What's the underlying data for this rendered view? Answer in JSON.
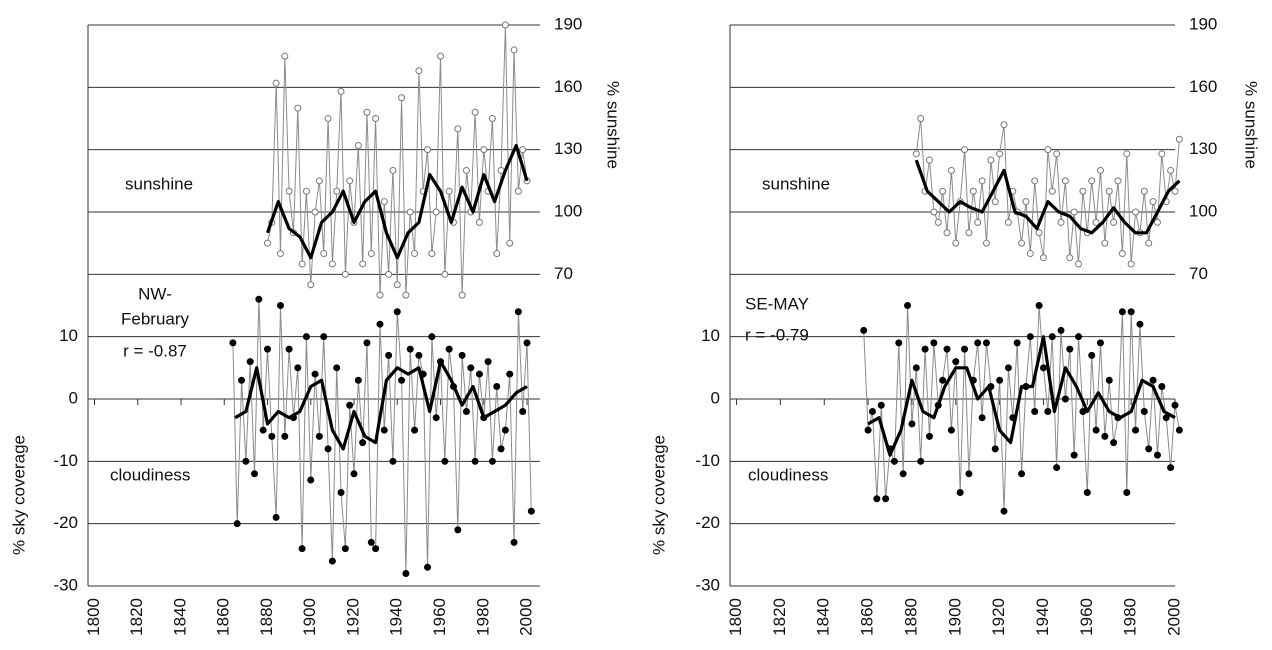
{
  "chart_data": [
    {
      "type": "line",
      "annotations": [
        "NW-",
        "February",
        "r = -0.87"
      ],
      "ylabel": "% sky coverage",
      "y2label": "% sunshine",
      "xlim": [
        1797,
        2006
      ],
      "xticks": [
        1800,
        1820,
        1840,
        1860,
        1880,
        1900,
        1920,
        1940,
        1960,
        1980,
        2000
      ],
      "ylim": [
        -30,
        60
      ],
      "yticks": [
        -30,
        -20,
        -10,
        0,
        10
      ],
      "y2lim": [
        -80,
        190
      ],
      "y2ticks": [
        70,
        100,
        130,
        160,
        190
      ],
      "grid": true,
      "series": [
        {
          "name": "sunshine",
          "axis": "y2",
          "color": "#8c8c8c",
          "marker": "open",
          "x": [
            1880,
            1882,
            1884,
            1886,
            1888,
            1890,
            1892,
            1894,
            1896,
            1898,
            1900,
            1902,
            1904,
            1906,
            1908,
            1910,
            1912,
            1914,
            1916,
            1918,
            1920,
            1922,
            1924,
            1926,
            1928,
            1930,
            1932,
            1934,
            1936,
            1938,
            1940,
            1942,
            1944,
            1946,
            1948,
            1950,
            1952,
            1954,
            1956,
            1958,
            1960,
            1962,
            1964,
            1966,
            1968,
            1970,
            1972,
            1974,
            1976,
            1978,
            1980,
            1982,
            1984,
            1986,
            1988,
            1990,
            1992,
            1994,
            1996,
            1998,
            2000
          ],
          "values": [
            85,
            95,
            162,
            80,
            175,
            110,
            90,
            150,
            75,
            110,
            65,
            100,
            115,
            80,
            145,
            75,
            110,
            158,
            70,
            115,
            95,
            132,
            75,
            148,
            80,
            145,
            60,
            105,
            70,
            120,
            65,
            155,
            60,
            100,
            80,
            168,
            110,
            130,
            80,
            100,
            175,
            70,
            110,
            95,
            140,
            60,
            120,
            100,
            148,
            95,
            130,
            110,
            145,
            80,
            120,
            190,
            85,
            178,
            110,
            130,
            115
          ]
        },
        {
          "axis": "y2",
          "color": "#000000",
          "marker": "none",
          "x": [
            1880,
            1885,
            1890,
            1895,
            1900,
            1905,
            1910,
            1915,
            1920,
            1925,
            1930,
            1935,
            1940,
            1945,
            1950,
            1955,
            1960,
            1965,
            1970,
            1975,
            1980,
            1985,
            1990,
            1995,
            2000
          ],
          "values": [
            90,
            105,
            92,
            88,
            78,
            95,
            100,
            110,
            95,
            105,
            110,
            90,
            78,
            90,
            95,
            118,
            110,
            95,
            112,
            100,
            118,
            105,
            120,
            132,
            115
          ]
        },
        {
          "name": "cloudiness",
          "axis": "y",
          "color": "#8c8c8c",
          "marker": "filled",
          "x": [
            1864,
            1866,
            1868,
            1870,
            1872,
            1874,
            1876,
            1878,
            1880,
            1882,
            1884,
            1886,
            1888,
            1890,
            1892,
            1894,
            1896,
            1898,
            1900,
            1902,
            1904,
            1906,
            1908,
            1910,
            1912,
            1914,
            1916,
            1918,
            1920,
            1922,
            1924,
            1926,
            1928,
            1930,
            1932,
            1934,
            1936,
            1938,
            1940,
            1942,
            1944,
            1946,
            1948,
            1950,
            1952,
            1954,
            1956,
            1958,
            1960,
            1962,
            1964,
            1966,
            1968,
            1970,
            1972,
            1974,
            1976,
            1978,
            1980,
            1982,
            1984,
            1986,
            1988,
            1990,
            1992,
            1994,
            1996,
            1998,
            2000,
            2002
          ],
          "values": [
            9,
            -20,
            3,
            -10,
            6,
            -12,
            16,
            -5,
            8,
            -6,
            -19,
            15,
            -6,
            8,
            -3,
            5,
            -24,
            10,
            -13,
            4,
            -6,
            10,
            -8,
            -26,
            5,
            -15,
            -24,
            -1,
            -12,
            3,
            -7,
            9,
            -23,
            -24,
            12,
            -5,
            7,
            -10,
            14,
            3,
            -28,
            8,
            -5,
            7,
            4,
            -27,
            10,
            -3,
            6,
            -10,
            8,
            2,
            -21,
            7,
            -2,
            5,
            -10,
            4,
            -3,
            6,
            -10,
            2,
            -8,
            -5,
            4,
            -23,
            14,
            -2,
            9,
            -18
          ]
        },
        {
          "axis": "y",
          "color": "#000000",
          "marker": "none",
          "x": [
            1865,
            1870,
            1875,
            1880,
            1885,
            1890,
            1895,
            1900,
            1905,
            1910,
            1915,
            1920,
            1925,
            1930,
            1935,
            1940,
            1945,
            1950,
            1955,
            1960,
            1965,
            1970,
            1975,
            1980,
            1985,
            1990,
            1995,
            2000
          ],
          "values": [
            -3,
            -2,
            5,
            -4,
            -2,
            -3,
            -2,
            2,
            3,
            -5,
            -8,
            -2,
            -6,
            -7,
            3,
            5,
            4,
            5,
            -2,
            6,
            3,
            -1,
            2,
            -3,
            -2,
            -1,
            1,
            2
          ]
        }
      ]
    },
    {
      "type": "line",
      "annotations": [
        "SE-MAY",
        "r = -0.79"
      ],
      "ylabel": "% sky coverage",
      "y2label": "% sunshine",
      "xlim": [
        1797,
        2000
      ],
      "xticks": [
        1800,
        1820,
        1840,
        1860,
        1880,
        1900,
        1920,
        1940,
        1960,
        1980,
        2000
      ],
      "ylim": [
        -30,
        60
      ],
      "yticks": [
        -30,
        -20,
        -10,
        0,
        10
      ],
      "y2lim": [
        -80,
        190
      ],
      "y2ticks": [
        70,
        100,
        130,
        160,
        190
      ],
      "grid": true,
      "series": [
        {
          "name": "sunshine",
          "axis": "y2",
          "color": "#8c8c8c",
          "marker": "open",
          "x": [
            1882,
            1884,
            1886,
            1888,
            1890,
            1892,
            1894,
            1896,
            1898,
            1900,
            1902,
            1904,
            1906,
            1908,
            1910,
            1912,
            1914,
            1916,
            1918,
            1920,
            1922,
            1924,
            1926,
            1928,
            1930,
            1932,
            1934,
            1936,
            1938,
            1940,
            1942,
            1944,
            1946,
            1948,
            1950,
            1952,
            1954,
            1956,
            1958,
            1960,
            1962,
            1964,
            1966,
            1968,
            1970,
            1972,
            1974,
            1976,
            1978,
            1980,
            1982,
            1984,
            1986,
            1988,
            1990,
            1992,
            1994,
            1996,
            1998,
            2000,
            2002
          ],
          "values": [
            128,
            145,
            110,
            125,
            100,
            95,
            110,
            90,
            120,
            85,
            105,
            130,
            90,
            110,
            95,
            115,
            85,
            125,
            105,
            128,
            142,
            95,
            110,
            100,
            85,
            105,
            80,
            115,
            90,
            78,
            130,
            110,
            128,
            95,
            115,
            78,
            100,
            75,
            110,
            90,
            115,
            95,
            120,
            85,
            110,
            95,
            115,
            80,
            128,
            75,
            100,
            90,
            110,
            85,
            105,
            95,
            128,
            105,
            120,
            110,
            135
          ]
        },
        {
          "axis": "y2",
          "color": "#000000",
          "marker": "none",
          "x": [
            1882,
            1887,
            1892,
            1897,
            1902,
            1907,
            1912,
            1917,
            1922,
            1927,
            1932,
            1937,
            1942,
            1947,
            1952,
            1957,
            1962,
            1967,
            1972,
            1977,
            1982,
            1987,
            1992,
            1997,
            2002
          ],
          "values": [
            125,
            110,
            105,
            100,
            105,
            102,
            100,
            110,
            120,
            100,
            98,
            92,
            105,
            100,
            98,
            92,
            90,
            95,
            102,
            95,
            90,
            90,
            100,
            110,
            115
          ]
        },
        {
          "name": "cloudiness",
          "axis": "y",
          "color": "#8c8c8c",
          "marker": "filled",
          "x": [
            1858,
            1860,
            1862,
            1864,
            1866,
            1868,
            1870,
            1872,
            1874,
            1876,
            1878,
            1880,
            1882,
            1884,
            1886,
            1888,
            1890,
            1892,
            1894,
            1896,
            1898,
            1900,
            1902,
            1904,
            1906,
            1908,
            1910,
            1912,
            1914,
            1916,
            1918,
            1920,
            1922,
            1924,
            1926,
            1928,
            1930,
            1932,
            1934,
            1936,
            1938,
            1940,
            1942,
            1944,
            1946,
            1948,
            1950,
            1952,
            1954,
            1956,
            1958,
            1960,
            1962,
            1964,
            1966,
            1968,
            1970,
            1972,
            1974,
            1976,
            1978,
            1980,
            1982,
            1984,
            1986,
            1988,
            1990,
            1992,
            1994,
            1996,
            1998,
            2000,
            2002
          ],
          "values": [
            11,
            -5,
            -2,
            -16,
            -1,
            -16,
            -8,
            -10,
            9,
            -12,
            15,
            -4,
            5,
            -10,
            8,
            -6,
            9,
            -1,
            3,
            8,
            -5,
            6,
            -15,
            8,
            -12,
            3,
            9,
            -3,
            9,
            2,
            -8,
            3,
            -18,
            5,
            -3,
            9,
            -12,
            2,
            10,
            -2,
            15,
            5,
            -2,
            10,
            -11,
            11,
            0,
            8,
            -9,
            10,
            -2,
            -15,
            7,
            -5,
            9,
            -6,
            3,
            -7,
            -3,
            14,
            -15,
            14,
            -5,
            12,
            -2,
            -8,
            3,
            -9,
            2,
            -3,
            -11,
            -1,
            -5
          ]
        },
        {
          "axis": "y",
          "color": "#000000",
          "marker": "none",
          "x": [
            1860,
            1865,
            1870,
            1875,
            1880,
            1885,
            1890,
            1895,
            1900,
            1905,
            1910,
            1915,
            1920,
            1925,
            1930,
            1935,
            1940,
            1945,
            1950,
            1955,
            1960,
            1965,
            1970,
            1975,
            1980,
            1985,
            1990,
            1995,
            2000
          ],
          "values": [
            -4,
            -3,
            -9,
            -5,
            3,
            -2,
            -3,
            2,
            5,
            5,
            0,
            2,
            -5,
            -7,
            2,
            2,
            10,
            -2,
            5,
            2,
            -2,
            1,
            -2,
            -3,
            -2,
            3,
            2,
            -2,
            -3
          ]
        }
      ]
    }
  ]
}
